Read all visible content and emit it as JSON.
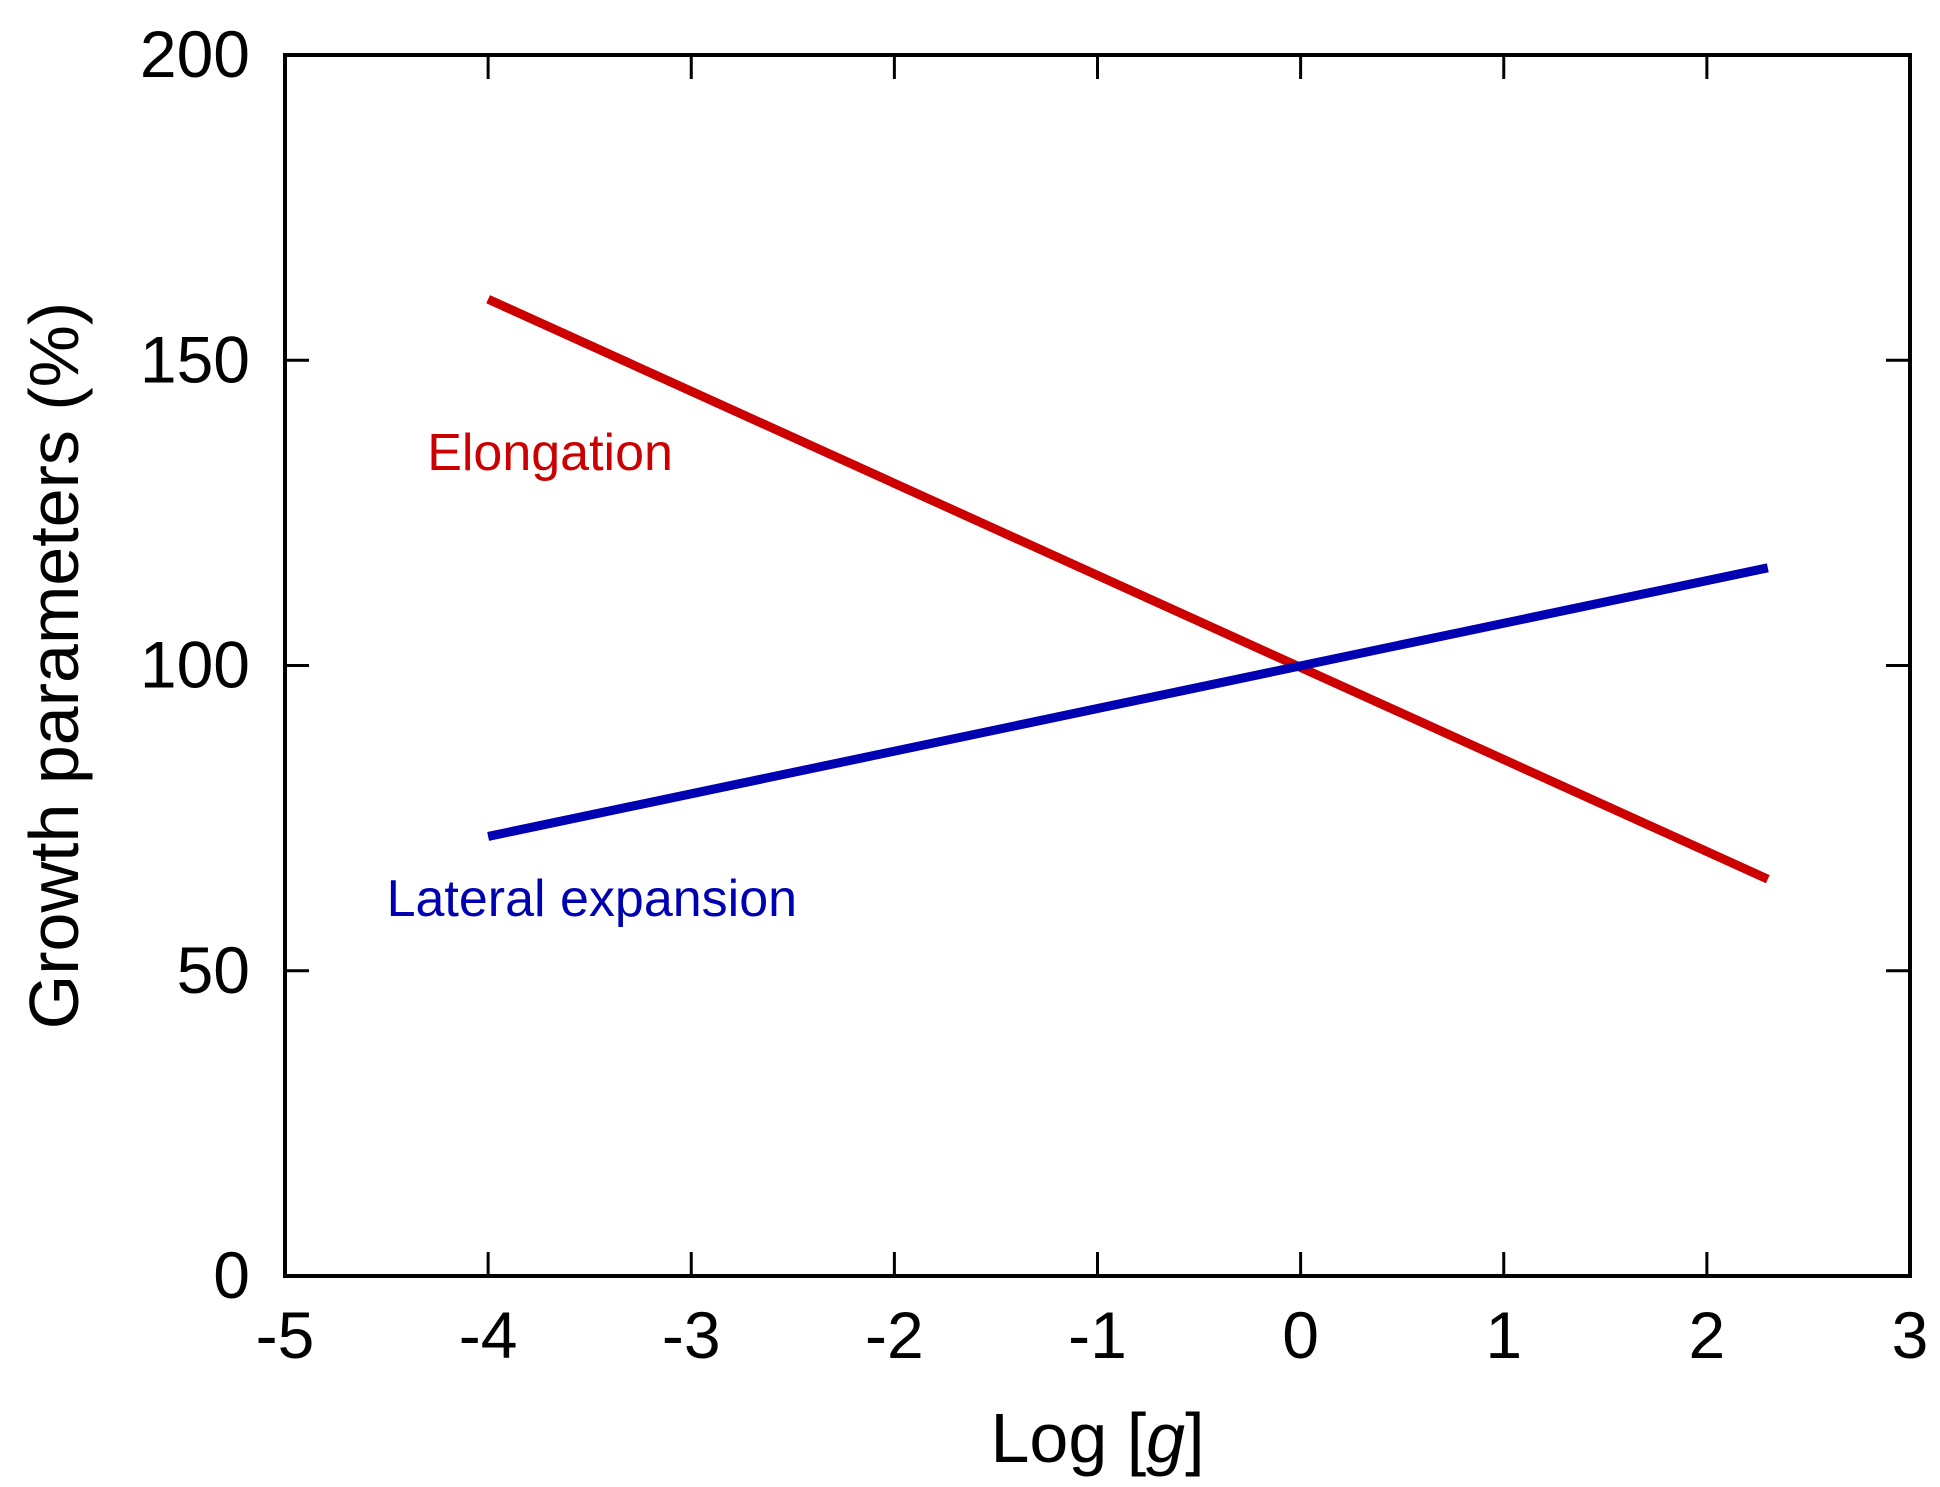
{
  "chart_data": {
    "type": "line",
    "title": "",
    "xlabel_prefix": "Log [",
    "xlabel_var": "g",
    "xlabel_suffix": "]",
    "ylabel": "Growth parameters (%)",
    "xlim": [
      -5,
      3
    ],
    "ylim": [
      0,
      200
    ],
    "xticks": [
      -5,
      -4,
      -3,
      -2,
      -1,
      0,
      1,
      2,
      3
    ],
    "yticks": [
      0,
      50,
      100,
      150,
      200
    ],
    "grid": false,
    "series": [
      {
        "name": "Elongation",
        "color": "#cc0000",
        "x": [
          -4,
          2.3
        ],
        "y": [
          160,
          65
        ],
        "label_position": [
          -4.3,
          132
        ]
      },
      {
        "name": "Lateral expansion",
        "color": "#0000b3",
        "x": [
          -4,
          2.3
        ],
        "y": [
          72,
          116
        ],
        "label_position": [
          -4.5,
          59
        ]
      }
    ]
  }
}
